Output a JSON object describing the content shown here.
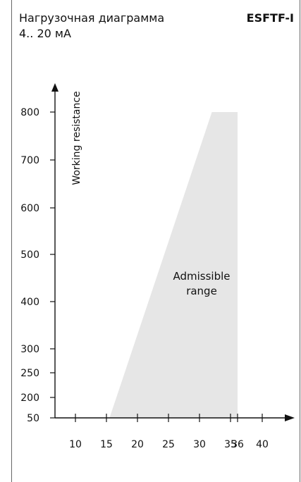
{
  "header": {
    "title": "Нагрузочная диаграмма",
    "subtitle": "4.. 20 мА",
    "model": "ESFTF-I"
  },
  "chart_data": {
    "type": "area",
    "title": "Нагрузочная диаграмма",
    "subtitle": "4.. 20 мА",
    "xlabel": "",
    "ylabel": "Working resistance",
    "x_ticks": [
      10,
      15,
      20,
      25,
      30,
      35,
      36,
      40
    ],
    "y_ticks": [
      50,
      200,
      250,
      300,
      400,
      500,
      600,
      700,
      800
    ],
    "x_tick_labels": [
      "10",
      "15",
      "20",
      "25",
      "30",
      "35",
      "36",
      "40"
    ],
    "y_tick_labels": [
      "50",
      "200",
      "250",
      "300",
      "400",
      "500",
      "600",
      "700",
      "800"
    ],
    "series": [
      {
        "name": "Admissible range",
        "polygon_x": [
          15.5,
          32,
          36,
          36
        ],
        "polygon_y": [
          50,
          800,
          800,
          50
        ]
      }
    ],
    "region_label": "Admissible range",
    "region_label_lines": [
      "Admissible",
      "range"
    ],
    "colors": {
      "region": "#e6e6e6",
      "axis": "#111111",
      "frame": "#666666"
    }
  }
}
